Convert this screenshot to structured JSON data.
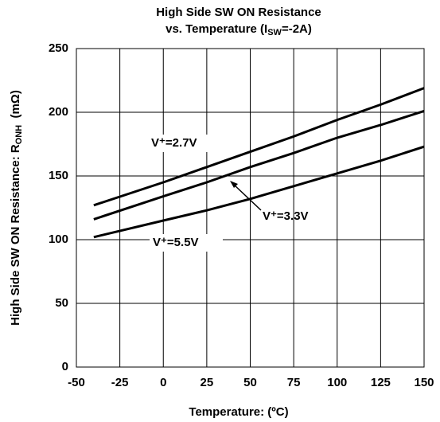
{
  "chart_data": {
    "type": "line",
    "title": "High Side SW ON Resistance",
    "subtitle": [
      "vs. Temperature (I",
      "SW",
      "=-2A)"
    ],
    "x_label": "Temperature: (ºC)",
    "y_label": [
      "High Side SW ON Resistance: R",
      "ONH",
      "  (mΩ)"
    ],
    "x": [
      -40,
      0,
      25,
      50,
      75,
      100,
      125,
      150
    ],
    "series": [
      {
        "name": "V⁺=2.7V",
        "color": "#000000",
        "values": [
          127,
          145,
          157,
          169,
          181,
          194,
          206,
          219
        ]
      },
      {
        "name": "V⁺=3.3V",
        "color": "#000000",
        "values": [
          116,
          134,
          145,
          157,
          168,
          180,
          190,
          201
        ]
      },
      {
        "name": "V⁺=5.5V",
        "color": "#000000",
        "values": [
          102,
          115,
          123,
          132,
          142,
          152,
          162,
          173
        ]
      }
    ],
    "xlim": [
      -50,
      150
    ],
    "xticks": [
      -50,
      -25,
      0,
      25,
      50,
      75,
      100,
      125,
      150
    ],
    "ylim": [
      0,
      250
    ],
    "yticks": [
      0,
      50,
      100,
      150,
      200,
      250
    ],
    "grid": true
  }
}
